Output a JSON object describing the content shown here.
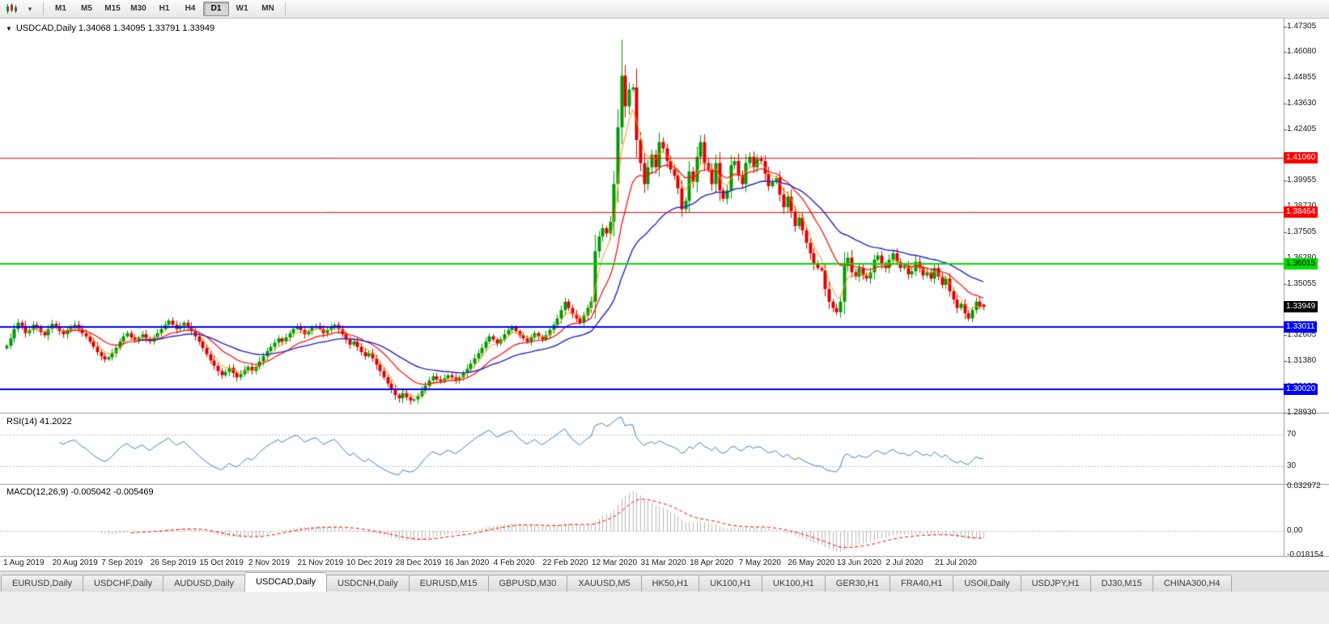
{
  "toolbar": {
    "timeframes": [
      "M1",
      "M5",
      "M15",
      "M30",
      "H1",
      "H4",
      "D1",
      "W1",
      "MN"
    ],
    "active_timeframe": "D1"
  },
  "icons": {
    "chart_type_caret": "▾",
    "title_collapse": "▼"
  },
  "chart": {
    "header": "USDCAD,Daily 1.34068 1.34095 1.33791 1.33949",
    "symbol": "USDCAD",
    "period": "Daily",
    "quote": {
      "open": "1.34068",
      "high": "1.34095",
      "low": "1.33791",
      "close": "1.33949"
    }
  },
  "chart_data": {
    "type": "candlestick",
    "title": "USDCAD,Daily",
    "style": {
      "up_color": "#009900",
      "down_color": "#DD0000",
      "bg": "#FFFFFF"
    },
    "y_axis": {
      "min": 1.2895,
      "max": 1.476,
      "ticks": [
        "1.47305",
        "1.46080",
        "1.44855",
        "1.43630",
        "1.42405",
        "1.39955",
        "1.38730",
        "1.37505",
        "1.36280",
        "1.35055",
        "1.32605",
        "1.31380",
        "1.30155",
        "1.28930"
      ]
    },
    "x_label_step": 13,
    "x_labels": [
      "1 Aug 2019",
      "20 Aug 2019",
      "7 Sep 2019",
      "26 Sep 2019",
      "15 Oct 2019",
      "2 Nov 2019",
      "21 Nov 2019",
      "10 Dec 2019",
      "28 Dec 2019",
      "16 Jan 2020",
      "4 Feb 2020",
      "22 Feb 2020",
      "12 Mar 2020",
      "31 Mar 2020",
      "18 Apr 2020",
      "7 May 2020",
      "26 May 2020",
      "13 Jun 2020",
      "2 Jul 2020",
      "21 Jul 2020"
    ],
    "closes": [
      1.321,
      1.3245,
      1.329,
      1.332,
      1.3305,
      1.327,
      1.3285,
      1.331,
      1.3295,
      1.3275,
      1.326,
      1.329,
      1.3315,
      1.33,
      1.328,
      1.3265,
      1.3285,
      1.33,
      1.331,
      1.329,
      1.327,
      1.3255,
      1.323,
      1.3205,
      1.318,
      1.316,
      1.3145,
      1.3155,
      1.3175,
      1.32,
      1.323,
      1.3255,
      1.327,
      1.325,
      1.3235,
      1.325,
      1.3265,
      1.3245,
      1.323,
      1.325,
      1.327,
      1.329,
      1.331,
      1.333,
      1.331,
      1.329,
      1.3305,
      1.332,
      1.33,
      1.328,
      1.3255,
      1.323,
      1.32,
      1.317,
      1.314,
      1.3115,
      1.309,
      1.307,
      1.3085,
      1.3105,
      1.308,
      1.306,
      1.3075,
      1.3095,
      1.311,
      1.309,
      1.311,
      1.3135,
      1.316,
      1.3185,
      1.3205,
      1.3225,
      1.3245,
      1.323,
      1.325,
      1.327,
      1.329,
      1.33,
      1.3285,
      1.3265,
      1.328,
      1.3295,
      1.3305,
      1.329,
      1.327,
      1.3285,
      1.33,
      1.331,
      1.329,
      1.3265,
      1.324,
      1.3215,
      1.323,
      1.3205,
      1.318,
      1.316,
      1.3175,
      1.315,
      1.312,
      1.309,
      1.306,
      1.303,
      1.3,
      1.2975,
      1.296,
      1.2985,
      1.2965,
      1.295,
      1.2955,
      1.297,
      1.2995,
      1.302,
      1.3045,
      1.3065,
      1.305,
      1.304,
      1.3055,
      1.307,
      1.306,
      1.3045,
      1.306,
      1.308,
      1.31,
      1.3125,
      1.315,
      1.3175,
      1.32,
      1.323,
      1.3255,
      1.324,
      1.322,
      1.324,
      1.3265,
      1.3285,
      1.33,
      1.328,
      1.326,
      1.3245,
      1.323,
      1.325,
      1.327,
      1.3255,
      1.324,
      1.326,
      1.3285,
      1.331,
      1.334,
      1.338,
      1.342,
      1.339,
      1.336,
      1.334,
      1.332,
      1.3355,
      1.339,
      1.342,
      1.366,
      1.373,
      1.377,
      1.3745,
      1.38,
      1.398,
      1.425,
      1.4496,
      1.435,
      1.443,
      1.444,
      1.419,
      1.408,
      1.398,
      1.406,
      1.412,
      1.406,
      1.418,
      1.415,
      1.409,
      1.405,
      1.402,
      1.396,
      1.386,
      1.39,
      1.404,
      1.399,
      1.411,
      1.418,
      1.408,
      1.405,
      1.398,
      1.408,
      1.395,
      1.391,
      1.395,
      1.407,
      1.409,
      1.402,
      1.398,
      1.408,
      1.411,
      1.406,
      1.41,
      1.409,
      1.403,
      1.397,
      1.399,
      1.401,
      1.393,
      1.387,
      1.392,
      1.385,
      1.378,
      1.382,
      1.376,
      1.37,
      1.365,
      1.36,
      1.358,
      1.357,
      1.348,
      1.342,
      1.339,
      1.337,
      1.342,
      1.359,
      1.363,
      1.356,
      1.354,
      1.358,
      1.3545,
      1.353,
      1.356,
      1.362,
      1.364,
      1.36,
      1.358,
      1.362,
      1.365,
      1.361,
      1.358,
      1.359,
      1.355,
      1.3565,
      1.361,
      1.358,
      1.3545,
      1.356,
      1.353,
      1.358,
      1.354,
      1.35,
      1.353,
      1.347,
      1.343,
      1.339,
      1.341,
      1.3365,
      1.334,
      1.338,
      1.342,
      1.3395,
      1.33949
    ],
    "overrides": {
      "163": {
        "high": 1.4668
      },
      "259": {
        "open": 1.34068,
        "high": 1.34095,
        "low": 1.33791,
        "close": 1.33949
      }
    },
    "overlays": [
      {
        "name": "ma-fast",
        "period": 5,
        "color": "#FF9900",
        "width": 1
      },
      {
        "name": "ma-mid",
        "period": 15,
        "color": "#FF0000",
        "width": 1.2
      },
      {
        "name": "ma-slow",
        "period": 35,
        "color": "#2222CC",
        "width": 1.4
      }
    ],
    "hlines": [
      {
        "value": 1.4106,
        "label": "1.41060",
        "color": "#FF0000",
        "text_color": "#FFFFFF",
        "width": 1
      },
      {
        "value": 1.38464,
        "label": "1.38464",
        "color": "#FF0000",
        "text_color": "#FFFFFF",
        "width": 1
      },
      {
        "value": 1.36015,
        "label": "1.36015",
        "color": "#00DD00",
        "text_color": "#000000",
        "width": 2
      },
      {
        "value": 1.33011,
        "label": "1.33011",
        "color": "#0000FF",
        "text_color": "#FFFFFF",
        "width": 2
      },
      {
        "value": 1.3002,
        "label": "1.30020",
        "color": "#0000FF",
        "text_color": "#FFFFFF",
        "width": 2
      }
    ],
    "current_price_tag": {
      "value": 1.33949,
      "label": "1.33949",
      "bg": "#000000",
      "text_color": "#FFFFFF"
    },
    "rsi": {
      "label": "RSI(14) 41.2022",
      "period": 14,
      "value": 41.2022,
      "levels": [
        70,
        30
      ],
      "color": "#4080C0"
    },
    "macd": {
      "label": "MACD(12,26,9) -0.005042 -0.005469",
      "fast": 12,
      "slow": 26,
      "signal": 9,
      "main_value": -0.005042,
      "signal_value": -0.005469,
      "axis_labels": [
        {
          "value": 0.032972,
          "label": "0.032972"
        },
        {
          "value": 0.0,
          "label": "0.00"
        },
        {
          "value": -0.018154,
          "label": "-0.018154"
        }
      ],
      "histogram_color": "#B8B8B8",
      "signal_color": "#FF0000"
    }
  },
  "tabs": {
    "active_index": 3,
    "items": [
      "EURUSD,Daily",
      "USDCHF,Daily",
      "AUDUSD,Daily",
      "USDCAD,Daily",
      "USDCNH,Daily",
      "EURUSD,M15",
      "GBPUSD,M30",
      "XAUUSD,M5",
      "HK50,H1",
      "UK100,H1",
      "UK100,H1",
      "GER30,H1",
      "FRA40,H1",
      "USOil,Daily",
      "USDJPY,H1",
      "DJ30,M15",
      "CHINA300,H4"
    ]
  }
}
